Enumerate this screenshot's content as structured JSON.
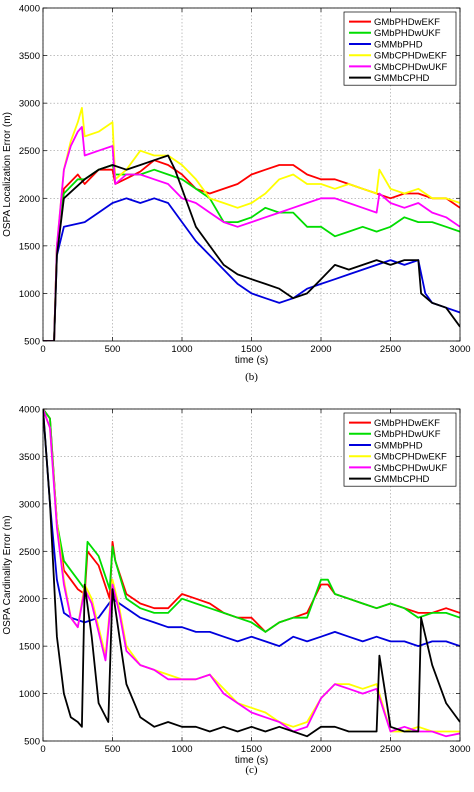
{
  "chart_data": [
    {
      "type": "line",
      "panel_label": "(b)",
      "xlabel": "time (s)",
      "ylabel": "OSPA Localization Error (m)",
      "xlim": [
        0,
        3000
      ],
      "ylim": [
        500,
        4000
      ],
      "xticks": [
        0,
        500,
        1000,
        1500,
        2000,
        2500,
        3000
      ],
      "yticks": [
        500,
        1000,
        1500,
        2000,
        2500,
        3000,
        3500,
        4000
      ],
      "grid": true,
      "legend_position": "top-right",
      "series": [
        {
          "name": "GMbPHDwEKF",
          "color": "#ff0000",
          "x": [
            0,
            80,
            100,
            150,
            250,
            300,
            400,
            500,
            520,
            700,
            800,
            900,
            1000,
            1100,
            1200,
            1400,
            1500,
            1600,
            1700,
            1800,
            1900,
            2000,
            2100,
            2200,
            2300,
            2400,
            2500,
            2600,
            2700,
            2800,
            2900,
            3000
          ],
          "y": [
            500,
            500,
            1500,
            2100,
            2250,
            2150,
            2300,
            2300,
            2150,
            2280,
            2400,
            2350,
            2250,
            2100,
            2050,
            2150,
            2250,
            2300,
            2350,
            2350,
            2250,
            2200,
            2200,
            2150,
            2100,
            2050,
            2000,
            2050,
            2050,
            2000,
            2000,
            1900
          ]
        },
        {
          "name": "GMbPHDwUKF",
          "color": "#00dd00",
          "x": [
            0,
            80,
            100,
            150,
            250,
            300,
            400,
            500,
            520,
            700,
            800,
            900,
            1000,
            1100,
            1200,
            1300,
            1400,
            1500,
            1600,
            1700,
            1800,
            1900,
            2000,
            2100,
            2200,
            2300,
            2400,
            2500,
            2600,
            2700,
            2800,
            2900,
            3000
          ],
          "y": [
            500,
            500,
            1500,
            2050,
            2200,
            2200,
            2300,
            2350,
            2250,
            2250,
            2300,
            2250,
            2200,
            2100,
            2000,
            1750,
            1750,
            1800,
            1900,
            1850,
            1850,
            1700,
            1700,
            1600,
            1650,
            1700,
            1650,
            1700,
            1800,
            1750,
            1750,
            1700,
            1650
          ]
        },
        {
          "name": "GMMbPHD",
          "color": "#0000dd",
          "x": [
            0,
            80,
            100,
            150,
            300,
            400,
            500,
            600,
            700,
            800,
            900,
            1000,
            1100,
            1200,
            1300,
            1400,
            1500,
            1600,
            1700,
            1800,
            1900,
            2000,
            2100,
            2200,
            2300,
            2400,
            2500,
            2600,
            2700,
            2750,
            2800,
            2900,
            3000
          ],
          "y": [
            500,
            500,
            1400,
            1700,
            1750,
            1850,
            1950,
            2000,
            1950,
            2000,
            1950,
            1750,
            1550,
            1400,
            1250,
            1100,
            1000,
            950,
            900,
            950,
            1050,
            1100,
            1150,
            1200,
            1250,
            1300,
            1350,
            1300,
            1350,
            1000,
            900,
            850,
            800
          ]
        },
        {
          "name": "GMbCPHDwEKF",
          "color": "#ffff00",
          "x": [
            0,
            80,
            100,
            150,
            200,
            250,
            280,
            300,
            400,
            500,
            520,
            600,
            700,
            800,
            900,
            1000,
            1100,
            1200,
            1300,
            1400,
            1500,
            1600,
            1700,
            1800,
            1900,
            2000,
            2100,
            2200,
            2300,
            2400,
            2420,
            2500,
            2600,
            2700,
            2800,
            2900,
            3000
          ],
          "y": [
            500,
            500,
            1500,
            2300,
            2600,
            2800,
            2950,
            2650,
            2700,
            2800,
            2200,
            2300,
            2500,
            2450,
            2450,
            2350,
            2200,
            2000,
            1950,
            1900,
            1950,
            2050,
            2200,
            2250,
            2150,
            2150,
            2100,
            2150,
            2100,
            2050,
            2300,
            2100,
            2050,
            2100,
            2000,
            2000,
            1950
          ]
        },
        {
          "name": "GMbCPHDwUKF",
          "color": "#ff00ff",
          "x": [
            0,
            80,
            100,
            150,
            200,
            250,
            280,
            300,
            400,
            500,
            520,
            600,
            700,
            800,
            900,
            1000,
            1100,
            1200,
            1300,
            1400,
            1500,
            1600,
            1700,
            1800,
            1900,
            2000,
            2100,
            2200,
            2300,
            2400,
            2420,
            2500,
            2600,
            2700,
            2800,
            2900,
            3000
          ],
          "y": [
            500,
            500,
            1500,
            2300,
            2550,
            2700,
            2750,
            2450,
            2500,
            2550,
            2150,
            2250,
            2250,
            2200,
            2150,
            2000,
            1950,
            1850,
            1750,
            1700,
            1750,
            1800,
            1850,
            1900,
            1950,
            2000,
            2000,
            1950,
            1900,
            1850,
            2050,
            1950,
            1900,
            1950,
            1850,
            1800,
            1700
          ]
        },
        {
          "name": "GMMbCPHD",
          "color": "#000000",
          "x": [
            0,
            80,
            100,
            150,
            300,
            400,
            500,
            600,
            700,
            800,
            900,
            950,
            1000,
            1100,
            1200,
            1300,
            1400,
            1500,
            1600,
            1700,
            1800,
            1900,
            2000,
            2100,
            2200,
            2300,
            2400,
            2500,
            2600,
            2700,
            2720,
            2800,
            2900,
            3000
          ],
          "y": [
            500,
            500,
            1400,
            2000,
            2200,
            2300,
            2350,
            2300,
            2350,
            2400,
            2450,
            2300,
            2100,
            1700,
            1500,
            1300,
            1200,
            1150,
            1100,
            1050,
            950,
            1000,
            1150,
            1300,
            1250,
            1300,
            1350,
            1300,
            1350,
            1350,
            1000,
            900,
            850,
            650
          ]
        }
      ]
    },
    {
      "type": "line",
      "panel_label": "(c)",
      "xlabel": "time (s)",
      "ylabel": "OSPA Cardinality Error (m)",
      "xlim": [
        0,
        3000
      ],
      "ylim": [
        500,
        4000
      ],
      "xticks": [
        0,
        500,
        1000,
        1500,
        2000,
        2500,
        3000
      ],
      "yticks": [
        500,
        1000,
        1500,
        2000,
        2500,
        3000,
        3500,
        4000
      ],
      "grid": true,
      "legend_position": "top-right",
      "series": [
        {
          "name": "GMbPHDwEKF",
          "color": "#ff0000",
          "x": [
            0,
            50,
            100,
            150,
            200,
            250,
            300,
            320,
            400,
            480,
            500,
            520,
            600,
            700,
            800,
            900,
            1000,
            1100,
            1200,
            1300,
            1400,
            1500,
            1600,
            1700,
            1800,
            1900,
            2000,
            2050,
            2100,
            2200,
            2300,
            2400,
            2500,
            2600,
            2700,
            2800,
            2900,
            3000
          ],
          "y": [
            4000,
            3900,
            2800,
            2300,
            2200,
            2100,
            2050,
            2500,
            2350,
            2000,
            2600,
            2400,
            2050,
            1950,
            1900,
            1900,
            2050,
            2000,
            1950,
            1850,
            1800,
            1800,
            1650,
            1750,
            1800,
            1850,
            2150,
            2150,
            2050,
            2000,
            1950,
            1900,
            1950,
            1900,
            1850,
            1850,
            1900,
            1850
          ]
        },
        {
          "name": "GMbPHDwUKF",
          "color": "#00dd00",
          "x": [
            0,
            50,
            100,
            150,
            200,
            250,
            300,
            320,
            400,
            480,
            500,
            520,
            600,
            700,
            800,
            900,
            1000,
            1100,
            1200,
            1300,
            1400,
            1500,
            1600,
            1700,
            1800,
            1900,
            2000,
            2050,
            2100,
            2200,
            2300,
            2400,
            2500,
            2600,
            2700,
            2800,
            2900,
            3000
          ],
          "y": [
            4000,
            3900,
            2800,
            2400,
            2300,
            2200,
            2100,
            2600,
            2450,
            2100,
            2550,
            2400,
            2000,
            1900,
            1850,
            1850,
            2000,
            1950,
            1900,
            1850,
            1800,
            1750,
            1650,
            1750,
            1800,
            1800,
            2200,
            2200,
            2050,
            2000,
            1950,
            1900,
            1950,
            1900,
            1800,
            1850,
            1850,
            1800
          ]
        },
        {
          "name": "GMMbPHD",
          "color": "#0000dd",
          "x": [
            0,
            50,
            100,
            150,
            200,
            300,
            400,
            500,
            600,
            700,
            800,
            900,
            1000,
            1100,
            1200,
            1300,
            1400,
            1500,
            1600,
            1700,
            1800,
            1900,
            2000,
            2100,
            2200,
            2300,
            2400,
            2500,
            2600,
            2700,
            2800,
            2900,
            3000
          ],
          "y": [
            4000,
            3000,
            2200,
            1850,
            1800,
            1750,
            1800,
            2000,
            1900,
            1800,
            1750,
            1700,
            1700,
            1650,
            1650,
            1600,
            1550,
            1600,
            1550,
            1500,
            1600,
            1550,
            1600,
            1650,
            1600,
            1550,
            1600,
            1550,
            1550,
            1500,
            1550,
            1550,
            1500
          ]
        },
        {
          "name": "GMbCPHDwEKF",
          "color": "#ffff00",
          "x": [
            0,
            50,
            100,
            150,
            200,
            250,
            300,
            350,
            400,
            450,
            500,
            550,
            600,
            700,
            800,
            900,
            1000,
            1100,
            1200,
            1300,
            1400,
            1500,
            1600,
            1700,
            1800,
            1900,
            2000,
            2100,
            2200,
            2300,
            2400,
            2500,
            2600,
            2700,
            2800,
            2900,
            3000
          ],
          "y": [
            4000,
            3800,
            2800,
            2200,
            1800,
            1700,
            2150,
            2000,
            1700,
            1400,
            2200,
            1900,
            1500,
            1300,
            1250,
            1200,
            1150,
            1150,
            1200,
            1050,
            900,
            850,
            800,
            700,
            650,
            700,
            950,
            1100,
            1100,
            1050,
            1100,
            600,
            600,
            650,
            600,
            600,
            600
          ]
        },
        {
          "name": "GMbCPHDwUKF",
          "color": "#ff00ff",
          "x": [
            0,
            50,
            100,
            150,
            200,
            250,
            300,
            350,
            400,
            450,
            500,
            550,
            600,
            700,
            800,
            900,
            1000,
            1100,
            1200,
            1300,
            1400,
            1500,
            1600,
            1700,
            1800,
            1900,
            2000,
            2100,
            2200,
            2300,
            2400,
            2500,
            2600,
            2700,
            2800,
            2900,
            3000
          ],
          "y": [
            4000,
            3800,
            2750,
            2150,
            1800,
            1700,
            2100,
            1950,
            1650,
            1350,
            2150,
            1850,
            1450,
            1300,
            1250,
            1150,
            1150,
            1150,
            1200,
            1000,
            900,
            800,
            750,
            700,
            600,
            650,
            950,
            1100,
            1050,
            1000,
            1050,
            600,
            650,
            600,
            600,
            550,
            580
          ]
        },
        {
          "name": "GMMbCPHD",
          "color": "#000000",
          "x": [
            0,
            50,
            100,
            150,
            200,
            250,
            280,
            300,
            350,
            400,
            470,
            500,
            550,
            600,
            700,
            800,
            900,
            1000,
            1100,
            1200,
            1300,
            1400,
            1500,
            1600,
            1700,
            1800,
            1900,
            2000,
            2100,
            2200,
            2300,
            2400,
            2420,
            2500,
            2600,
            2700,
            2720,
            2800,
            2900,
            3000
          ],
          "y": [
            4000,
            3000,
            1600,
            1000,
            750,
            700,
            650,
            2150,
            1600,
            900,
            700,
            2100,
            1600,
            1100,
            750,
            650,
            700,
            650,
            650,
            600,
            650,
            600,
            650,
            600,
            650,
            600,
            550,
            650,
            650,
            600,
            600,
            600,
            1400,
            650,
            600,
            600,
            1800,
            1300,
            900,
            700
          ]
        }
      ]
    }
  ]
}
